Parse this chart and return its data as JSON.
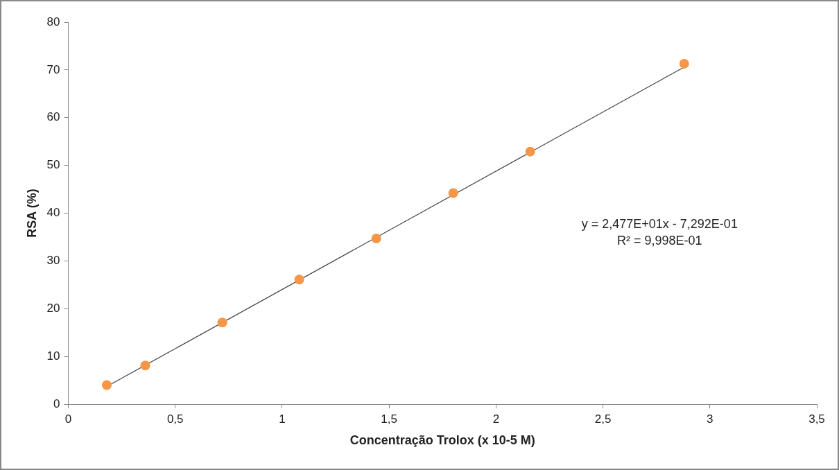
{
  "chart_data": {
    "type": "scatter",
    "xlabel": "Concentração Trolox (x 10-5 M)",
    "ylabel": "RSA (%)",
    "xlim": [
      0,
      3.5
    ],
    "xticks": [
      0,
      {
        "value": 0.5,
        "label": "0,5"
      },
      1,
      {
        "value": 1.5,
        "label": "1,5"
      },
      2,
      {
        "value": 2.5,
        "label": "2,5"
      },
      3,
      {
        "value": 3.5,
        "label": "3,5"
      }
    ],
    "ylim": [
      0,
      80
    ],
    "yticks": [
      0,
      10,
      20,
      30,
      40,
      50,
      60,
      70,
      80
    ],
    "legend": false,
    "marker": "circle",
    "series": [
      {
        "type": "scatter",
        "color": "#f79646",
        "x": [
          0.18,
          0.36,
          0.72,
          1.08,
          1.44,
          1.8,
          2.16,
          2.88
        ],
        "values": [
          4,
          8.1,
          17.1,
          26.1,
          34.7,
          44.2,
          52.9,
          71.3
        ]
      },
      {
        "type": "line",
        "color": "#404040",
        "marker": "none",
        "x": [
          0.18,
          2.88
        ],
        "values": [
          3.7,
          70.6
        ]
      }
    ],
    "annotations": [
      "y = 2,477E+01x - 7,292E-01",
      "R² = 9,998E-01"
    ]
  }
}
